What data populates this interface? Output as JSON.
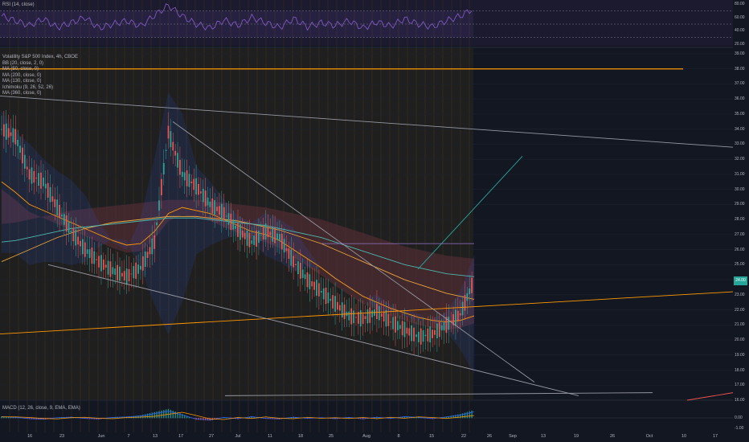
{
  "colors": {
    "background": "#131722",
    "up": "#26a69a",
    "down": "#ef5350",
    "bb": "#2962ff",
    "ma": "#ff9800",
    "teal_ma": "#4db6ac",
    "rsi": "#7e57c2",
    "cloud_bear": "#5d2f37",
    "trend": "#9598a1",
    "hline": "#ff9800"
  },
  "rsi_pane": {
    "label": "RSI (14, close)",
    "y_ticks": [
      "80.00",
      "60.00",
      "40.00",
      "20.00"
    ]
  },
  "main_pane": {
    "title": "Volatility S&P 500 Index, 4h, CBOE",
    "indicators": [
      "BB (20, close, 2, 0)",
      "MA (50, close, 0)",
      "MA (200, close, 0)",
      "MA (130, close, 0)",
      "Ichimoku (9, 26, 52, 26)",
      "MA (360, close, 0)"
    ],
    "y_ticks": [
      "39.00",
      "38.00",
      "37.00",
      "36.00",
      "35.00",
      "34.00",
      "33.00",
      "32.00",
      "31.00",
      "30.00",
      "29.00",
      "28.00",
      "27.00",
      "26.00",
      "25.00",
      "24.00",
      "23.00",
      "22.00",
      "21.00",
      "20.00",
      "19.00",
      "18.00",
      "17.00",
      "16.00"
    ],
    "last_price": "24.00"
  },
  "macd_pane": {
    "label": "MACD (12, 26, close, 9, EMA, EMA)",
    "y_ticks": [
      "0.00",
      "-1.00"
    ]
  },
  "x_axis": {
    "ticks": [
      "16",
      "23",
      "Jun",
      "7",
      "13",
      "17",
      "27",
      "Jul",
      "11",
      "18",
      "25",
      "Aug",
      "8",
      "15",
      "22",
      "26",
      "Sep",
      "13",
      "19",
      "26",
      "Oct",
      "10",
      "17"
    ]
  },
  "chart_data": {
    "type": "line",
    "title": "Volatility S&P 500 Index, 4h, CBOE",
    "xlabel": "",
    "ylabel": "",
    "ylim": [
      16,
      40
    ],
    "grid": true,
    "x_range_dates": [
      "May 2019",
      "Oct 2019"
    ],
    "series": [
      {
        "name": "Volatility S&P 500 Index",
        "values": [
          34.0,
          33.5,
          31.0,
          30.5,
          28.8,
          27.2,
          26.0,
          25.2,
          24.6,
          24.2,
          24.8,
          26.5,
          33.8,
          31.0,
          30.2,
          29.0,
          28.4,
          27.3,
          26.5,
          27.2,
          26.8,
          25.2,
          24.0,
          23.2,
          22.4,
          21.6,
          21.4,
          21.9,
          21.2,
          20.7,
          20.2,
          20.4,
          21.0,
          21.7,
          24.0
        ]
      },
      {
        "name": "BB (20, close, 2, 0)",
        "values": [
          35.2,
          33.8,
          33.0,
          32.0,
          31.2,
          30.6,
          29.6,
          27.8,
          26.5,
          26.0,
          28.0,
          32.0,
          36.4,
          35.0,
          31.5,
          30.5,
          29.3,
          28.2,
          27.8,
          28.4,
          28.0,
          27.4,
          26.0,
          24.8,
          24.0,
          23.6,
          22.8,
          23.0,
          22.3,
          21.6,
          21.3,
          21.4,
          21.8,
          23.2,
          25.6
        ]
      },
      {
        "name": "MA (50, close, 0)",
        "values": [
          30.5,
          29.8,
          29.0,
          28.6,
          28.2,
          27.8,
          27.4,
          27.0,
          26.6,
          26.3,
          26.4,
          27.2,
          28.4,
          28.8,
          28.6,
          28.4,
          28.0,
          27.6,
          27.2,
          27.0,
          26.6,
          26.0,
          25.4,
          24.8,
          24.1,
          23.5,
          22.9,
          22.5,
          22.1,
          21.8,
          21.5,
          21.3,
          21.2,
          21.3,
          21.6
        ]
      },
      {
        "name": "MA (200, close, 0)",
        "values": [
          25.2,
          25.6,
          26.0,
          26.4,
          26.8,
          27.1,
          27.4,
          27.6,
          27.8,
          27.9,
          28.0,
          28.1,
          28.2,
          28.2,
          28.2,
          28.1,
          28.0,
          27.9,
          27.7,
          27.5,
          27.3,
          27.0,
          26.7,
          26.4,
          26.0,
          25.6,
          25.2,
          24.8,
          24.4,
          24.0,
          23.7,
          23.4,
          23.1,
          22.9,
          22.7
        ]
      },
      {
        "name": "MA (360, close, 0)",
        "values": [
          26.5,
          26.6,
          26.8,
          27.0,
          27.2,
          27.4,
          27.5,
          27.6,
          27.7,
          27.8,
          27.9,
          28.0,
          28.1,
          28.1,
          28.1,
          28.0,
          27.9,
          27.8,
          27.7,
          27.6,
          27.4,
          27.2,
          27.0,
          26.8,
          26.5,
          26.2,
          25.9,
          25.6,
          25.3,
          25.0,
          24.8,
          24.6,
          24.4,
          24.3,
          24.2
        ]
      }
    ],
    "horizontal_line": 38.0,
    "rsi_values": [
      62,
      55,
      48,
      58,
      45,
      52,
      60,
      44,
      50,
      55,
      47,
      63,
      78,
      62,
      50,
      44,
      56,
      48,
      60,
      52,
      45,
      58,
      46,
      52,
      48,
      55,
      44,
      53,
      47,
      58,
      50,
      46,
      55,
      62,
      74
    ],
    "macd_hist": [
      0.05,
      0.02,
      -0.03,
      -0.05,
      0.01,
      0.03,
      -0.02,
      -0.04,
      0.02,
      0.04,
      0.08,
      0.18,
      0.28,
      0.12,
      -0.05,
      -0.08,
      0.02,
      -0.03,
      0.05,
      -0.02,
      -0.04,
      0.03,
      -0.02,
      0.01,
      -0.03,
      0.02,
      -0.04,
      0.03,
      -0.02,
      0.05,
      0.02,
      -0.03,
      0.04,
      0.12,
      0.25
    ]
  }
}
